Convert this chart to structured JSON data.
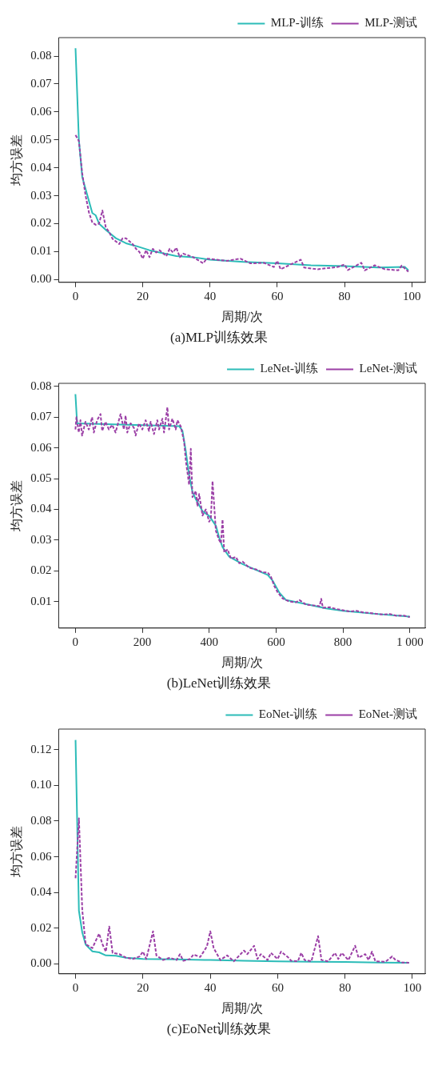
{
  "chart_data": [
    {
      "type": "line",
      "xlabel": "周期/次",
      "ylabel": "均方误差",
      "annotations": [
        "(a)MLP训练效果"
      ],
      "legend": "top right",
      "grid": false,
      "marker": "none",
      "xlim": [
        -5,
        104
      ],
      "xticks": [
        0,
        20,
        40,
        60,
        80,
        100
      ],
      "ylim": [
        -0.001,
        0.0866
      ],
      "yticks": [
        {
          "value": 0,
          "label": "0.00"
        },
        {
          "value": 0.01,
          "label": "0.01"
        },
        {
          "value": 0.02,
          "label": "0.02"
        },
        {
          "value": 0.03,
          "label": "0.03"
        },
        {
          "value": 0.04,
          "label": "0.04"
        },
        {
          "value": 0.05,
          "label": "0.05"
        },
        {
          "value": 0.06,
          "label": "0.06"
        },
        {
          "value": 0.07,
          "label": "0.07"
        },
        {
          "value": 0.08,
          "label": "0.08"
        }
      ],
      "series": [
        {
          "name": "MLP-训练",
          "color": "#2cbcb8",
          "line_style": "solid",
          "x": [
            0,
            1,
            2,
            5,
            6,
            7,
            9,
            12,
            15,
            18,
            22,
            25,
            30,
            35,
            40,
            50,
            60,
            70,
            80,
            90,
            98,
            99
          ],
          "values": [
            0.0828,
            0.05,
            0.0367,
            0.0238,
            0.023,
            0.02,
            0.0178,
            0.0148,
            0.013,
            0.012,
            0.0105,
            0.0097,
            0.0084,
            0.008,
            0.0071,
            0.0063,
            0.0058,
            0.0051,
            0.0048,
            0.0043,
            0.0045,
            0.0033
          ]
        },
        {
          "name": "MLP-测试",
          "color": "#9b3fa6",
          "line_style": "dashed",
          "x": [
            0,
            1,
            2,
            3,
            4,
            5,
            6,
            7,
            8,
            9,
            10,
            11,
            13,
            14,
            15,
            17,
            18,
            19,
            20,
            21,
            22,
            23,
            24,
            25,
            27,
            28,
            29,
            30,
            31,
            32,
            35,
            38,
            39,
            42,
            45,
            49,
            52,
            56,
            59,
            60,
            61,
            64,
            67,
            68,
            72,
            78,
            80,
            81,
            85,
            86,
            89,
            92,
            96,
            97,
            99
          ],
          "values": [
            0.0517,
            0.0496,
            0.038,
            0.03,
            0.024,
            0.0204,
            0.0196,
            0.02,
            0.0247,
            0.0187,
            0.017,
            0.0146,
            0.0127,
            0.0148,
            0.0148,
            0.0127,
            0.011,
            0.0099,
            0.0075,
            0.0105,
            0.008,
            0.011,
            0.0097,
            0.0105,
            0.0084,
            0.011,
            0.0097,
            0.0114,
            0.008,
            0.0093,
            0.008,
            0.0058,
            0.0075,
            0.0071,
            0.0067,
            0.0075,
            0.0058,
            0.006,
            0.0045,
            0.0067,
            0.0037,
            0.0054,
            0.0071,
            0.0043,
            0.0037,
            0.0045,
            0.0054,
            0.0034,
            0.006,
            0.0033,
            0.0051,
            0.0037,
            0.0033,
            0.005,
            0.0028
          ]
        }
      ]
    },
    {
      "type": "line",
      "xlabel": "周期/次",
      "ylabel": "均方误差",
      "annotations": [
        "(b)LeNet训练效果"
      ],
      "legend": "top right",
      "grid": false,
      "marker": "none",
      "xlim": [
        -50,
        1046
      ],
      "xticks": [
        0,
        200,
        400,
        600,
        800,
        {
          "value": 1000,
          "label": "1 000"
        }
      ],
      "ylim": [
        0.0014,
        0.081
      ],
      "yticks": [
        {
          "value": 0.01,
          "label": "0.01"
        },
        {
          "value": 0.02,
          "label": "0.02"
        },
        {
          "value": 0.03,
          "label": "0.03"
        },
        {
          "value": 0.04,
          "label": "0.04"
        },
        {
          "value": 0.05,
          "label": "0.05"
        },
        {
          "value": 0.06,
          "label": "0.06"
        },
        {
          "value": 0.07,
          "label": "0.07"
        },
        {
          "value": 0.08,
          "label": "0.08"
        }
      ],
      "series": [
        {
          "name": "LeNet-训练",
          "color": "#2cbcb8",
          "line_style": "solid",
          "x": [
            0,
            5,
            310,
            320,
            330,
            340,
            350,
            360,
            380,
            400,
            420,
            430,
            440,
            460,
            500,
            540,
            575,
            590,
            610,
            630,
            680,
            750,
            800,
            900,
            1000
          ],
          "values": [
            0.0775,
            0.068,
            0.0671,
            0.0656,
            0.059,
            0.0511,
            0.0457,
            0.0433,
            0.0394,
            0.0379,
            0.0347,
            0.0308,
            0.0277,
            0.0246,
            0.0222,
            0.0203,
            0.0187,
            0.0168,
            0.0129,
            0.0105,
            0.0094,
            0.0078,
            0.007,
            0.006,
            0.0051
          ]
        },
        {
          "name": "LeNet-测试",
          "color": "#9b3fa6",
          "line_style": "dashed",
          "x": [
            0,
            3,
            10,
            15,
            20,
            30,
            40,
            50,
            55,
            65,
            75,
            80,
            90,
            100,
            110,
            120,
            130,
            135,
            145,
            150,
            155,
            165,
            175,
            180,
            190,
            200,
            210,
            220,
            225,
            235,
            245,
            250,
            260,
            265,
            275,
            280,
            290,
            300,
            305,
            315,
            325,
            330,
            340,
            345,
            350,
            360,
            365,
            370,
            380,
            390,
            400,
            405,
            410,
            420,
            430,
            435,
            440,
            445,
            455,
            465,
            480,
            490,
            500,
            520,
            540,
            560,
            575,
            585,
            595,
            605,
            620,
            640,
            660,
            670,
            690,
            710,
            730,
            735,
            740,
            760,
            780,
            800,
            820,
            840,
            860,
            880,
            900,
            920,
            940,
            960,
            980,
            1000
          ],
          "values": [
            0.066,
            0.07,
            0.065,
            0.069,
            0.064,
            0.0685,
            0.066,
            0.07,
            0.065,
            0.069,
            0.071,
            0.0655,
            0.0685,
            0.066,
            0.0675,
            0.065,
            0.069,
            0.071,
            0.066,
            0.0705,
            0.065,
            0.068,
            0.0665,
            0.064,
            0.068,
            0.066,
            0.069,
            0.0655,
            0.0685,
            0.0645,
            0.069,
            0.066,
            0.0695,
            0.065,
            0.0732,
            0.066,
            0.0695,
            0.066,
            0.069,
            0.067,
            0.062,
            0.056,
            0.048,
            0.0597,
            0.044,
            0.046,
            0.041,
            0.045,
            0.038,
            0.04,
            0.036,
            0.037,
            0.0492,
            0.033,
            0.03,
            0.029,
            0.0367,
            0.026,
            0.027,
            0.024,
            0.0245,
            0.0225,
            0.023,
            0.021,
            0.0205,
            0.0195,
            0.0195,
            0.018,
            0.015,
            0.013,
            0.011,
            0.01,
            0.0098,
            0.0105,
            0.009,
            0.0088,
            0.0085,
            0.0109,
            0.008,
            0.0082,
            0.0076,
            0.0072,
            0.0068,
            0.007,
            0.0065,
            0.0063,
            0.006,
            0.0058,
            0.006,
            0.0054,
            0.0055,
            0.005
          ]
        }
      ]
    },
    {
      "type": "line",
      "xlabel": "周期/次",
      "ylabel": "均方误差",
      "annotations": [
        "(c)EoNet训练效果"
      ],
      "legend": "top right",
      "grid": false,
      "marker": "none",
      "xlim": [
        -5,
        103.8
      ],
      "xticks": [
        0,
        20,
        40,
        60,
        80,
        100
      ],
      "ylim": [
        -0.0055,
        0.1315
      ],
      "yticks": [
        {
          "value": 0,
          "label": "0.00"
        },
        {
          "value": 0.02,
          "label": "0.02"
        },
        {
          "value": 0.04,
          "label": "0.04"
        },
        {
          "value": 0.06,
          "label": "0.06"
        },
        {
          "value": 0.08,
          "label": "0.08"
        },
        {
          "value": 0.1,
          "label": "0.10"
        },
        {
          "value": 0.12,
          "label": "0.12"
        }
      ],
      "series": [
        {
          "name": "EoNet-训练",
          "color": "#2cbcb8",
          "line_style": "solid",
          "x": [
            0,
            1,
            2,
            3,
            5,
            7,
            9,
            12,
            15,
            20,
            30,
            40,
            50,
            60,
            70,
            80,
            90,
            99
          ],
          "values": [
            0.1254,
            0.0298,
            0.0176,
            0.0109,
            0.0071,
            0.0065,
            0.0048,
            0.0046,
            0.0035,
            0.0028,
            0.0026,
            0.0022,
            0.0018,
            0.0015,
            0.0012,
            0.0011,
            0.0008,
            0.0007
          ]
        },
        {
          "name": "EoNet-测试",
          "color": "#9b3fa6",
          "line_style": "dashed",
          "x": [
            0,
            1,
            2,
            3,
            5,
            7,
            8,
            9,
            10,
            11,
            13,
            15,
            17,
            19,
            20,
            21,
            23,
            24,
            26,
            28,
            30,
            31,
            32,
            34,
            35,
            37,
            39,
            40,
            41,
            43,
            45,
            47,
            50,
            51,
            53,
            54,
            55,
            57,
            58,
            60,
            61,
            63,
            64,
            66,
            67,
            68,
            70,
            72,
            73,
            75,
            77,
            78,
            79,
            81,
            83,
            84,
            86,
            87,
            88,
            89,
            92,
            94,
            95,
            97,
            99
          ],
          "values": [
            0.048,
            0.0816,
            0.03,
            0.011,
            0.0089,
            0.017,
            0.011,
            0.0069,
            0.021,
            0.0062,
            0.0055,
            0.0035,
            0.0028,
            0.0042,
            0.0069,
            0.0028,
            0.0183,
            0.0048,
            0.0022,
            0.0035,
            0.0022,
            0.0055,
            0.0018,
            0.0028,
            0.0053,
            0.0039,
            0.0098,
            0.0183,
            0.0089,
            0.0022,
            0.0048,
            0.0015,
            0.0075,
            0.0055,
            0.0102,
            0.0028,
            0.0055,
            0.0022,
            0.0062,
            0.0028,
            0.0069,
            0.0039,
            0.0018,
            0.0015,
            0.0062,
            0.0022,
            0.0015,
            0.0156,
            0.0022,
            0.0015,
            0.0062,
            0.0028,
            0.0062,
            0.0022,
            0.0102,
            0.0035,
            0.0055,
            0.0022,
            0.0069,
            0.0015,
            0.0012,
            0.0042,
            0.0022,
            0.0008,
            0.0007
          ]
        }
      ]
    }
  ]
}
